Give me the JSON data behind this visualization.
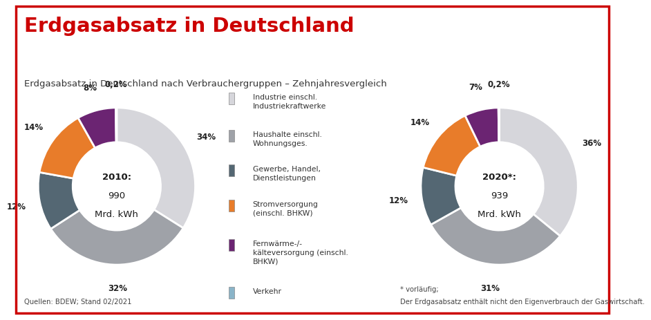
{
  "title": "Erdgasabsatz in Deutschland",
  "subtitle": "Erdgasabsatz in Deutschland nach Verbrauchergruppen – Zehnjahresvergleich",
  "title_color": "#cc0000",
  "subtitle_color": "#333333",
  "background_color": "#ffffff",
  "border_color": "#cc0000",
  "pie1": {
    "year": "2010:",
    "total": "990",
    "unit": "Mrd. kWh",
    "values": [
      34,
      32,
      12,
      14,
      8,
      0.2
    ],
    "labels_pct": [
      "34%",
      "32%",
      "12%",
      "14%",
      "8%",
      "0,2%"
    ],
    "colors": [
      "#d6d6db",
      "#9fa2a8",
      "#546773",
      "#e87c2a",
      "#6b2472",
      "#8ab4c8"
    ]
  },
  "pie2": {
    "year": "2020*:",
    "total": "939",
    "unit": "Mrd. kWh",
    "values": [
      36,
      31,
      12,
      14,
      7,
      0.2
    ],
    "labels_pct": [
      "36%",
      "31%",
      "12%",
      "14%",
      "7%",
      "0,2%"
    ],
    "colors": [
      "#d6d6db",
      "#9fa2a8",
      "#546773",
      "#e87c2a",
      "#6b2472",
      "#8ab4c8"
    ]
  },
  "legend_labels": [
    "Industrie einschl.\nIndustriekraftwerke",
    "Haushalte einschl.\nWohnungsges.",
    "Gewerbe, Handel,\nDienstleistungen",
    "Stromversorgung\n(einschl. BHKW)",
    "Fernwärme-/-\nkälteversorgung (einschl.\nBHKW)",
    "Verkehr"
  ],
  "legend_colors": [
    "#d6d6db",
    "#9fa2a8",
    "#546773",
    "#e87c2a",
    "#6b2472",
    "#8ab4c8"
  ],
  "footnote_left": "Quellen: BDEW; Stand 02/2021",
  "footnote_right_line1": "* vorläufig;",
  "footnote_right_line2": "Der Erdgasabsatz enthält nicht den Eigenverbrauch der Gaswirtschaft."
}
